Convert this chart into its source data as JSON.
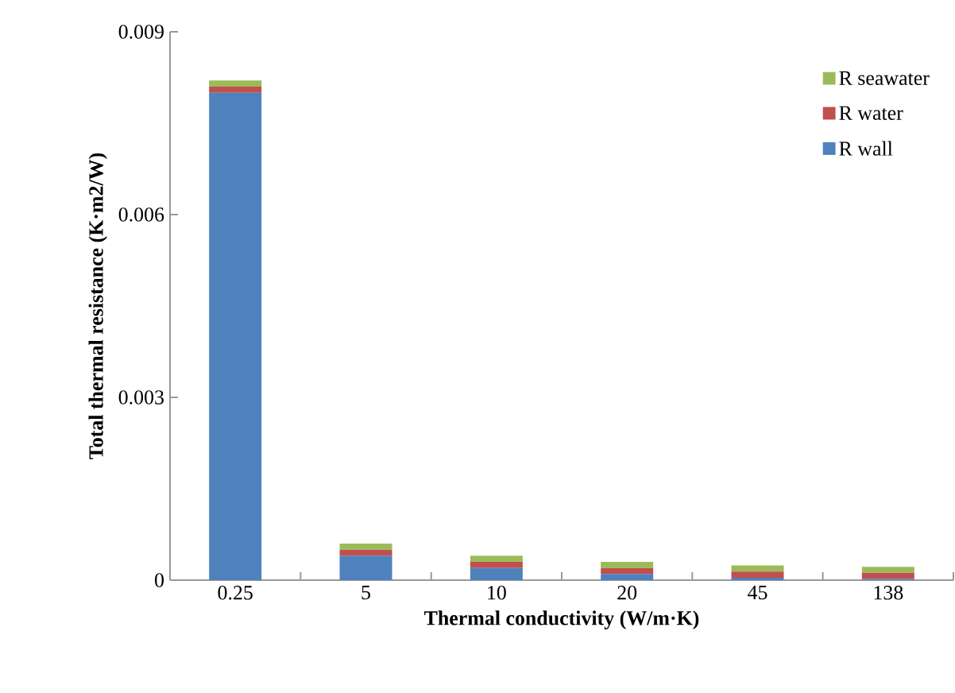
{
  "chart_data": {
    "type": "bar",
    "stacked": true,
    "xlabel": "Thermal conductivity (W/m·K)",
    "ylabel": "Total thermal resistance (K·m2/W)",
    "categories": [
      "0.25",
      "5",
      "10",
      "20",
      "45",
      "138"
    ],
    "series": [
      {
        "name": "R wall",
        "color": "#4f81bd",
        "values": [
          0.008,
          0.0004,
          0.0002,
          0.0001,
          4e-05,
          2e-05
        ]
      },
      {
        "name": "R water",
        "color": "#c0504d",
        "values": [
          0.0001,
          0.0001,
          0.0001,
          0.0001,
          0.0001,
          0.0001
        ]
      },
      {
        "name": "R seawater",
        "color": "#9bbb59",
        "values": [
          0.0001,
          0.0001,
          0.0001,
          0.0001,
          0.0001,
          0.0001
        ]
      }
    ],
    "ylim": [
      0,
      0.009
    ],
    "yticks": [
      0,
      0.003,
      0.006,
      0.009
    ],
    "legend": "top right",
    "grid": false
  }
}
